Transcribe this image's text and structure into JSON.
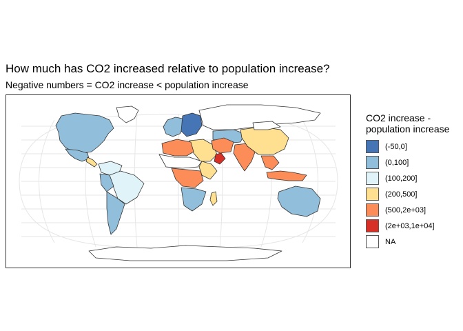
{
  "title": "How much has CO2 increased relative to population increase?",
  "subtitle": "Negative numbers = CO2 increase < population increase",
  "legend": {
    "title_line1": "CO2 increase -",
    "title_line2": "population increase",
    "items": [
      {
        "label": "(-50,0]",
        "color": "#4575b4"
      },
      {
        "label": "(0,100]",
        "color": "#91bfdb"
      },
      {
        "label": "(100,200]",
        "color": "#e0f3f8"
      },
      {
        "label": "(200,500]",
        "color": "#fee090"
      },
      {
        "label": "(500,2e+03]",
        "color": "#fc8d59"
      },
      {
        "label": "(2e+03,1e+04]",
        "color": "#d73027"
      },
      {
        "label": "NA",
        "color": "#ffffff"
      }
    ]
  },
  "map": {
    "projection": "Robinson",
    "border_color": "#333333",
    "graticule_color": "#e6e6e6",
    "regions": [
      {
        "name": "Canada / United States",
        "bin": "(0,100]"
      },
      {
        "name": "Mexico",
        "bin": "(0,100]"
      },
      {
        "name": "Greenland",
        "bin": "NA"
      },
      {
        "name": "Central America",
        "bin": "(200,500]"
      },
      {
        "name": "South America (north)",
        "bin": "(100,200]"
      },
      {
        "name": "Brazil",
        "bin": "(100,200]"
      },
      {
        "name": "Peru",
        "bin": "(0,100]"
      },
      {
        "name": "Argentina / Chile",
        "bin": "(0,100]"
      },
      {
        "name": "Europe (west)",
        "bin": "(0,100]"
      },
      {
        "name": "Europe (east)",
        "bin": "(-50,0]"
      },
      {
        "name": "Russia",
        "bin": "NA"
      },
      {
        "name": "Kazakhstan",
        "bin": "(0,100]"
      },
      {
        "name": "Middle East",
        "bin": "(200,500]"
      },
      {
        "name": "Oman",
        "bin": "(2e+03,1e+04]"
      },
      {
        "name": "Iran",
        "bin": "(500,2e+03]"
      },
      {
        "name": "India",
        "bin": "(500,2e+03]"
      },
      {
        "name": "China",
        "bin": "(200,500]"
      },
      {
        "name": "Mongolia",
        "bin": "NA"
      },
      {
        "name": "Southeast Asia",
        "bin": "(500,2e+03]"
      },
      {
        "name": "Indonesia",
        "bin": "(500,2e+03]"
      },
      {
        "name": "Australia",
        "bin": "(0,100]"
      },
      {
        "name": "North Africa",
        "bin": "(500,2e+03]"
      },
      {
        "name": "Sahel",
        "bin": "NA"
      },
      {
        "name": "East Africa",
        "bin": "(200,500]"
      },
      {
        "name": "Central Africa",
        "bin": "(500,2e+03]"
      },
      {
        "name": "Southern Africa",
        "bin": "(0,100]"
      },
      {
        "name": "Madagascar",
        "bin": "(200,500]"
      },
      {
        "name": "Antarctica",
        "bin": "NA"
      }
    ]
  }
}
